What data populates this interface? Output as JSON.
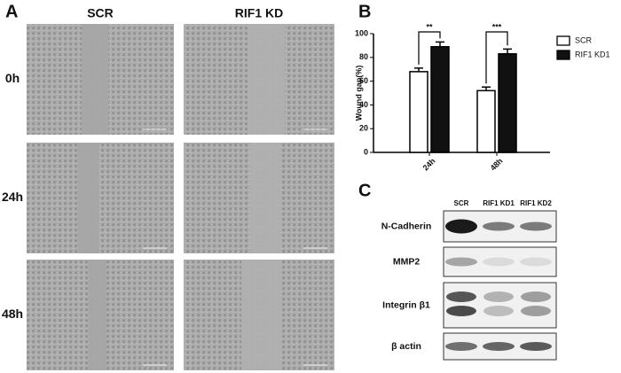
{
  "panel_a": {
    "label": "A",
    "columns": [
      "SCR",
      "RIF1 KD"
    ],
    "rows": [
      "0h",
      "24h",
      "48h"
    ]
  },
  "chart_data": {
    "type": "bar",
    "panel_label": "B",
    "y_label": "Wound gap(%)",
    "categories": [
      "24h",
      "48h"
    ],
    "series": [
      {
        "name": "SCR",
        "color": "#ffffff",
        "values": [
          68,
          52
        ],
        "errors": [
          3,
          3
        ]
      },
      {
        "name": "RIF1 KD1",
        "color": "#111111",
        "values": [
          89,
          83
        ],
        "errors": [
          4,
          4
        ]
      }
    ],
    "significance": [
      "**",
      "***"
    ],
    "ylim": [
      0,
      100
    ],
    "yticks": [
      0,
      20,
      40,
      60,
      80,
      100
    ]
  },
  "panel_c": {
    "label": "C",
    "lanes": [
      "SCR",
      "RIF1 KD1",
      "RIF1 KD2"
    ],
    "rows": [
      "N-Cadherin",
      "MMP2",
      "Integrin β1",
      "β actin"
    ]
  }
}
